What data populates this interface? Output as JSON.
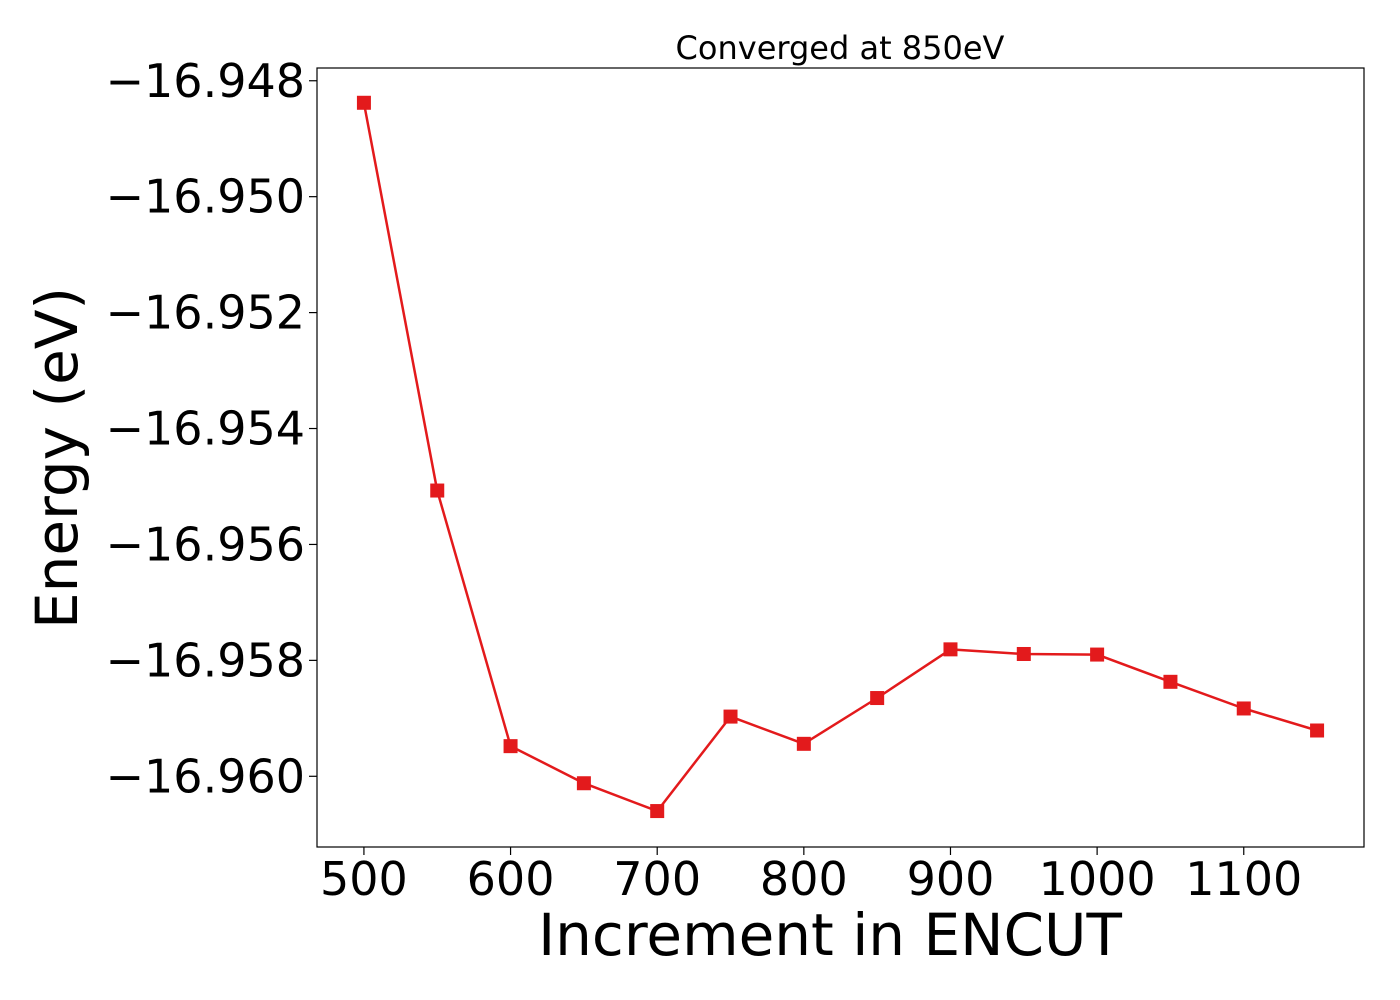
{
  "chart_data": {
    "type": "line",
    "title": "Converged at 850eV",
    "xlabel": "Increment in ENCUT",
    "ylabel": "Energy (eV)",
    "x": [
      500,
      550,
      600,
      650,
      700,
      750,
      800,
      850,
      900,
      950,
      1000,
      1050,
      1100,
      1150
    ],
    "series": [
      {
        "values": [
          -16.94838,
          -16.95507,
          -16.95948,
          -16.96012,
          -16.9606,
          -16.95897,
          -16.95944,
          -16.95865,
          -16.95781,
          -16.95789,
          -16.9579,
          -16.95837,
          -16.95883,
          -16.95921
        ],
        "color": "#e31a1c",
        "marker": "square"
      }
    ],
    "xticks": [
      "500",
      "600",
      "700",
      "800",
      "900",
      "1000",
      "1100"
    ],
    "xtick_values": [
      500,
      600,
      700,
      800,
      900,
      1000,
      1100
    ],
    "yticks": [
      "−16.948",
      "−16.950",
      "−16.952",
      "−16.954",
      "−16.956",
      "−16.958",
      "−16.960"
    ],
    "ytick_values": [
      -16.948,
      -16.95,
      -16.952,
      -16.954,
      -16.956,
      -16.958,
      -16.96
    ],
    "xlim": [
      468,
      1182
    ],
    "ylim": [
      -16.96122,
      -16.94778
    ],
    "grid": false,
    "legend": "none"
  }
}
